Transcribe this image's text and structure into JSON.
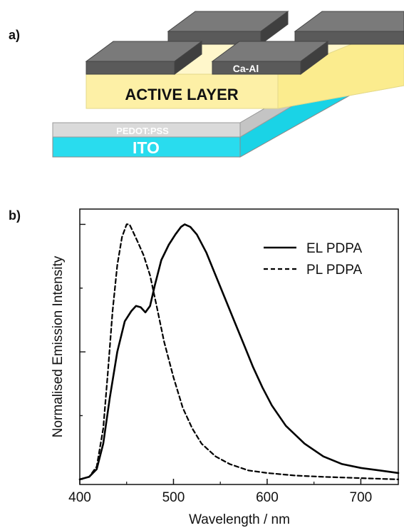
{
  "panel_a": {
    "label": "a)",
    "electrode_label": "Ca-Al",
    "active_layer_label": "ACTIVE LAYER",
    "pedot_label": "PEDOT:PSS",
    "ito_label": "ITO",
    "colors": {
      "electrode": "#5c5c5c",
      "active_layer": "#fdf1a4",
      "pedot": "#d4d4d4",
      "ito": "#2ee0f0"
    }
  },
  "panel_b": {
    "label": "b)"
  },
  "chart_data": {
    "type": "line",
    "xlabel": "Wavelength / nm",
    "ylabel": "Normalised Emission Intensity",
    "xlim": [
      400,
      740
    ],
    "ylim": [
      -0.02,
      1.06
    ],
    "x_ticks": [
      400,
      500,
      600,
      700
    ],
    "x_tick_labels": [
      "400",
      "500",
      "600",
      "700"
    ],
    "y_ticks_shown_without_labels": true,
    "legend_position": "top-right",
    "series": [
      {
        "name": "EL PDPA",
        "line_style": "solid",
        "x": [
          400,
          410,
          418,
          425,
          432,
          440,
          448,
          455,
          460,
          465,
          470,
          475,
          480,
          487,
          495,
          502,
          508,
          512,
          518,
          525,
          535,
          545,
          555,
          565,
          575,
          585,
          595,
          605,
          620,
          640,
          660,
          680,
          700,
          720,
          740
        ],
        "y": [
          0.0,
          0.01,
          0.04,
          0.14,
          0.32,
          0.5,
          0.62,
          0.66,
          0.68,
          0.675,
          0.655,
          0.68,
          0.76,
          0.86,
          0.92,
          0.96,
          0.99,
          1.0,
          0.99,
          0.96,
          0.89,
          0.8,
          0.71,
          0.62,
          0.53,
          0.44,
          0.36,
          0.29,
          0.21,
          0.14,
          0.09,
          0.06,
          0.045,
          0.035,
          0.025
        ]
      },
      {
        "name": "PL PDPA",
        "line_style": "dashed",
        "x": [
          400,
          410,
          418,
          425,
          430,
          435,
          440,
          445,
          450,
          453,
          457,
          462,
          468,
          475,
          482,
          490,
          500,
          510,
          520,
          530,
          545,
          560,
          580,
          600,
          630,
          660,
          700,
          740
        ],
        "y": [
          0.0,
          0.01,
          0.05,
          0.2,
          0.42,
          0.66,
          0.84,
          0.95,
          1.0,
          1.0,
          0.97,
          0.93,
          0.88,
          0.8,
          0.68,
          0.54,
          0.4,
          0.28,
          0.2,
          0.14,
          0.09,
          0.06,
          0.035,
          0.025,
          0.015,
          0.01,
          0.005,
          0.0
        ]
      }
    ]
  }
}
